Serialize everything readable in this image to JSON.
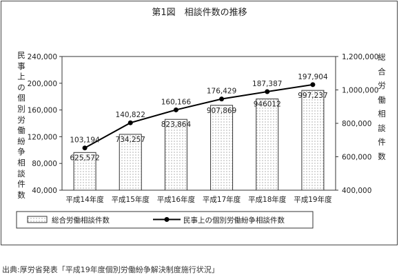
{
  "chart_data": {
    "type": "bar+line",
    "title": "第1図　相談件数の推移",
    "categories": [
      "平成14年度",
      "平成15年度",
      "平成16年度",
      "平成17年度",
      "平成18年度",
      "平成19年度"
    ],
    "series": [
      {
        "name": "総合労働相談件数",
        "kind": "bar",
        "axis": "right",
        "values": [
          625572,
          734257,
          823864,
          907869,
          946012,
          997237
        ],
        "labels": [
          "625,572",
          "734,257",
          "823,864",
          "907,869",
          "946012",
          "997,237"
        ]
      },
      {
        "name": "民事上の個別労働紛争相談件数",
        "kind": "line",
        "axis": "left",
        "values": [
          103194,
          140822,
          160166,
          176429,
          187387,
          197904
        ],
        "labels": [
          "103,194",
          "140,822",
          "160,166",
          "176,429",
          "187,387",
          "197,904"
        ]
      }
    ],
    "left_axis": {
      "label": "民事上の個別労働紛争相談件数",
      "ylim": [
        40000,
        240000
      ],
      "ticks": [
        "40,000",
        "80,000",
        "120,000",
        "160,000",
        "200,000",
        "240,000"
      ]
    },
    "right_axis": {
      "label": "総合労働相談件数",
      "ylim": [
        400000,
        1200000
      ],
      "ticks": [
        "400,000",
        "600,000",
        "800,000",
        "1,000,000",
        "1,200,000"
      ]
    },
    "grid": false,
    "legend": "bottom",
    "colors": {
      "bar_fill": "#ffffff",
      "bar_dots": "#777777",
      "line": "#000000"
    }
  },
  "source": "出典:厚労省発表「平成19年度個別労働紛争解決制度施行状況」"
}
